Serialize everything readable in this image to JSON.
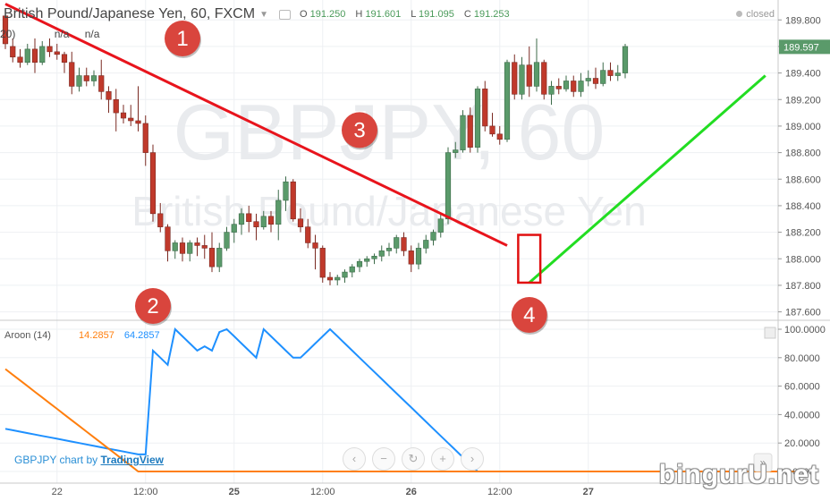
{
  "header": {
    "title": "British Pound/Japanese Yen, 60, FXCM",
    "o_label": "O",
    "o_value": "191.250",
    "h_label": "H",
    "h_value": "191.601",
    "l_label": "L",
    "l_value": "191.095",
    "c_label": "C",
    "c_value": "191.253",
    "status": "closed"
  },
  "indicator_top": {
    "label": "20)",
    "value_a": "n/a",
    "value_b": "n/a"
  },
  "indicator_bottom": {
    "label": "Aroon (14)",
    "value_up": "14.2857",
    "value_down": "64.2857"
  },
  "credit": {
    "prefix": "GBPJPY chart by ",
    "link": "TradingView"
  },
  "watermark_site": "bingurU.net",
  "nav_buttons": [
    "‹",
    "−",
    "↻",
    "+",
    "›"
  ],
  "colors": {
    "up_candle": "#5a9a6a",
    "down_candle": "#c0392b",
    "aroon_up": "#1e90ff",
    "aroon_down": "#ff7f0e",
    "downtrend_line": "#e8141c",
    "uptrend_line": "#22dd22",
    "marker": "#d9453d"
  },
  "chart_data": [
    {
      "type": "candlestick",
      "symbol_watermark": "GBPJPY, 60",
      "name_watermark": "British Pound/Japanese Yen",
      "ylim": [
        187.55,
        189.95
      ],
      "yticks": [
        "187.600",
        "187.800",
        "188.000",
        "188.200",
        "188.400",
        "188.600",
        "188.800",
        "189.000",
        "189.200",
        "189.400",
        "189.600",
        "189.800"
      ],
      "last_price": "189.597",
      "x_ticks": [
        {
          "label": "22",
          "index": 7
        },
        {
          "label": "12:00",
          "index": 19
        },
        {
          "label": "25",
          "index": 31
        },
        {
          "label": "12:00",
          "index": 43
        },
        {
          "label": "26",
          "index": 55
        },
        {
          "label": "12:00",
          "index": 67
        },
        {
          "label": "27",
          "index": 79
        }
      ],
      "candles": [
        [
          189.83,
          189.88,
          189.58,
          189.62
        ],
        [
          189.6,
          189.66,
          189.48,
          189.52
        ],
        [
          189.52,
          189.58,
          189.44,
          189.48
        ],
        [
          189.48,
          189.62,
          189.46,
          189.58
        ],
        [
          189.58,
          189.66,
          189.4,
          189.48
        ],
        [
          189.48,
          189.64,
          189.46,
          189.6
        ],
        [
          189.6,
          189.66,
          189.52,
          189.56
        ],
        [
          189.56,
          189.62,
          189.5,
          189.54
        ],
        [
          189.54,
          189.56,
          189.4,
          189.48
        ],
        [
          189.48,
          189.56,
          189.24,
          189.3
        ],
        [
          189.3,
          189.44,
          189.26,
          189.38
        ],
        [
          189.38,
          189.44,
          189.3,
          189.34
        ],
        [
          189.34,
          189.42,
          189.3,
          189.38
        ],
        [
          189.38,
          189.5,
          189.2,
          189.26
        ],
        [
          189.26,
          189.3,
          189.1,
          189.2
        ],
        [
          189.2,
          189.28,
          188.96,
          189.1
        ],
        [
          189.1,
          189.16,
          189.02,
          189.06
        ],
        [
          189.06,
          189.16,
          189.0,
          189.04
        ],
        [
          189.04,
          189.3,
          188.96,
          189.02
        ],
        [
          189.02,
          189.08,
          188.7,
          188.8
        ],
        [
          188.8,
          188.86,
          188.28,
          188.34
        ],
        [
          188.34,
          188.42,
          188.2,
          188.24
        ],
        [
          188.24,
          188.26,
          187.98,
          188.06
        ],
        [
          188.06,
          188.14,
          188.0,
          188.12
        ],
        [
          188.12,
          188.16,
          187.98,
          188.04
        ],
        [
          188.04,
          188.14,
          187.98,
          188.12
        ],
        [
          188.12,
          188.16,
          188.02,
          188.1
        ],
        [
          188.1,
          188.18,
          188.0,
          188.08
        ],
        [
          188.08,
          188.2,
          187.9,
          187.94
        ],
        [
          187.94,
          188.12,
          187.9,
          188.08
        ],
        [
          188.08,
          188.24,
          188.06,
          188.2
        ],
        [
          188.2,
          188.3,
          188.12,
          188.26
        ],
        [
          188.26,
          188.38,
          188.18,
          188.34
        ],
        [
          188.34,
          188.4,
          188.2,
          188.28
        ],
        [
          188.28,
          188.34,
          188.14,
          188.24
        ],
        [
          188.24,
          188.36,
          188.22,
          188.32
        ],
        [
          188.32,
          188.36,
          188.2,
          188.26
        ],
        [
          188.26,
          188.52,
          188.14,
          188.44
        ],
        [
          188.44,
          188.62,
          188.36,
          188.58
        ],
        [
          188.58,
          188.6,
          188.28,
          188.3
        ],
        [
          188.3,
          188.38,
          188.2,
          188.24
        ],
        [
          188.24,
          188.3,
          188.08,
          188.12
        ],
        [
          188.12,
          188.18,
          187.92,
          188.08
        ],
        [
          188.08,
          188.1,
          187.82,
          187.86
        ],
        [
          187.86,
          187.9,
          187.8,
          187.84
        ],
        [
          187.84,
          187.88,
          187.8,
          187.86
        ],
        [
          187.86,
          187.92,
          187.82,
          187.9
        ],
        [
          187.9,
          187.96,
          187.86,
          187.94
        ],
        [
          187.94,
          188.0,
          187.9,
          187.98
        ],
        [
          187.98,
          188.02,
          187.94,
          188.0
        ],
        [
          188.0,
          188.04,
          187.96,
          188.02
        ],
        [
          188.02,
          188.1,
          187.98,
          188.06
        ],
        [
          188.06,
          188.12,
          188.02,
          188.08
        ],
        [
          188.08,
          188.18,
          188.04,
          188.16
        ],
        [
          188.16,
          188.2,
          188.02,
          188.06
        ],
        [
          188.06,
          188.1,
          187.9,
          187.96
        ],
        [
          187.96,
          188.12,
          187.92,
          188.08
        ],
        [
          188.08,
          188.18,
          188.04,
          188.14
        ],
        [
          188.14,
          188.22,
          188.1,
          188.2
        ],
        [
          188.2,
          188.34,
          188.16,
          188.3
        ],
        [
          188.3,
          188.84,
          188.26,
          188.8
        ],
        [
          188.8,
          188.88,
          188.76,
          188.82
        ],
        [
          188.82,
          189.12,
          188.8,
          189.08
        ],
        [
          189.08,
          189.14,
          188.8,
          188.84
        ],
        [
          188.84,
          189.3,
          188.8,
          189.28
        ],
        [
          189.28,
          189.34,
          188.96,
          189.0
        ],
        [
          189.0,
          189.1,
          188.92,
          188.94
        ],
        [
          188.94,
          189.0,
          188.86,
          188.9
        ],
        [
          188.9,
          189.5,
          188.88,
          189.48
        ],
        [
          189.48,
          189.54,
          189.2,
          189.24
        ],
        [
          189.24,
          189.52,
          189.2,
          189.46
        ],
        [
          189.46,
          189.6,
          189.22,
          189.3
        ],
        [
          189.3,
          189.66,
          189.26,
          189.48
        ],
        [
          189.48,
          189.5,
          189.2,
          189.24
        ],
        [
          189.24,
          189.34,
          189.16,
          189.3
        ],
        [
          189.3,
          189.36,
          189.24,
          189.28
        ],
        [
          189.28,
          189.38,
          189.26,
          189.34
        ],
        [
          189.34,
          189.38,
          189.22,
          189.26
        ],
        [
          189.26,
          189.4,
          189.22,
          189.34
        ],
        [
          189.34,
          189.42,
          189.3,
          189.36
        ],
        [
          189.36,
          189.44,
          189.28,
          189.32
        ],
        [
          189.32,
          189.48,
          189.3,
          189.42
        ],
        [
          189.42,
          189.48,
          189.34,
          189.38
        ],
        [
          189.38,
          189.46,
          189.34,
          189.4
        ],
        [
          189.4,
          189.62,
          189.36,
          189.6
        ]
      ],
      "annotations": [
        {
          "label": "1",
          "index": 24,
          "price": 189.66
        },
        {
          "label": "3",
          "index": 48,
          "price": 188.97
        },
        {
          "label": "2",
          "index": 20
        },
        {
          "label": "4",
          "index": 71
        }
      ],
      "downtrend": {
        "from": {
          "index": 0,
          "price": 189.92
        },
        "to": {
          "index": 68,
          "price": 188.1
        }
      },
      "uptrend": {
        "from": {
          "index": 71,
          "price": 187.82
        },
        "to": {
          "index": 103,
          "price": 189.38
        }
      },
      "highlight": {
        "from_index": 69.5,
        "to_index": 72.5,
        "low": 187.82,
        "high": 188.18
      }
    },
    {
      "type": "line",
      "name": "Aroon (14)",
      "ylim": [
        0,
        100
      ],
      "yticks": [
        "0.0000",
        "20.0000",
        "40.0000",
        "60.0000",
        "80.0000",
        "100.0000"
      ],
      "series": [
        {
          "name": "up",
          "values": [
            30,
            29,
            28,
            27,
            26,
            25,
            24,
            23,
            22,
            21,
            20,
            19,
            18,
            17,
            16,
            15,
            14,
            13,
            12,
            12,
            85,
            80,
            75,
            100,
            95,
            90,
            85,
            88,
            85,
            98,
            100,
            95,
            90,
            85,
            80,
            100,
            95,
            90,
            85,
            80,
            80,
            85,
            90,
            95,
            100,
            95,
            90,
            85,
            80,
            75,
            70,
            65,
            60,
            55,
            50,
            45,
            40,
            35,
            30,
            25,
            20,
            15,
            10,
            5,
            0,
            0,
            0,
            0,
            0,
            0,
            0,
            0,
            0,
            0,
            0,
            0,
            0,
            0,
            0,
            0,
            0,
            0,
            0,
            0,
            0,
            0,
            0,
            0,
            0,
            0,
            0,
            0,
            0,
            0,
            0,
            0,
            0,
            0,
            0,
            0,
            0,
            0,
            0,
            0,
            0,
            0,
            0,
            0
          ]
        },
        {
          "name": "down",
          "values": [
            72,
            68,
            64,
            60,
            56,
            52,
            48,
            44,
            40,
            36,
            32,
            28,
            24,
            20,
            16,
            12,
            8,
            4,
            0,
            0,
            0,
            0,
            0,
            0,
            0,
            0,
            0,
            0,
            0,
            0,
            0,
            0,
            0,
            0,
            0,
            0,
            0,
            0,
            0,
            0,
            0,
            0,
            0,
            0,
            0,
            0,
            0,
            0,
            0,
            0,
            0,
            0,
            0,
            0,
            0,
            0,
            0,
            0,
            0,
            0,
            0,
            0,
            0,
            0,
            0,
            0,
            0,
            0,
            0,
            0,
            0,
            0,
            0,
            0,
            0,
            0,
            0,
            0,
            0,
            0,
            0,
            0,
            0,
            0,
            0,
            0,
            0,
            0,
            0,
            0,
            0,
            0,
            0,
            0,
            0,
            0,
            0,
            0,
            0,
            0,
            0,
            0,
            0,
            0,
            0,
            0,
            0,
            0
          ]
        }
      ]
    }
  ]
}
